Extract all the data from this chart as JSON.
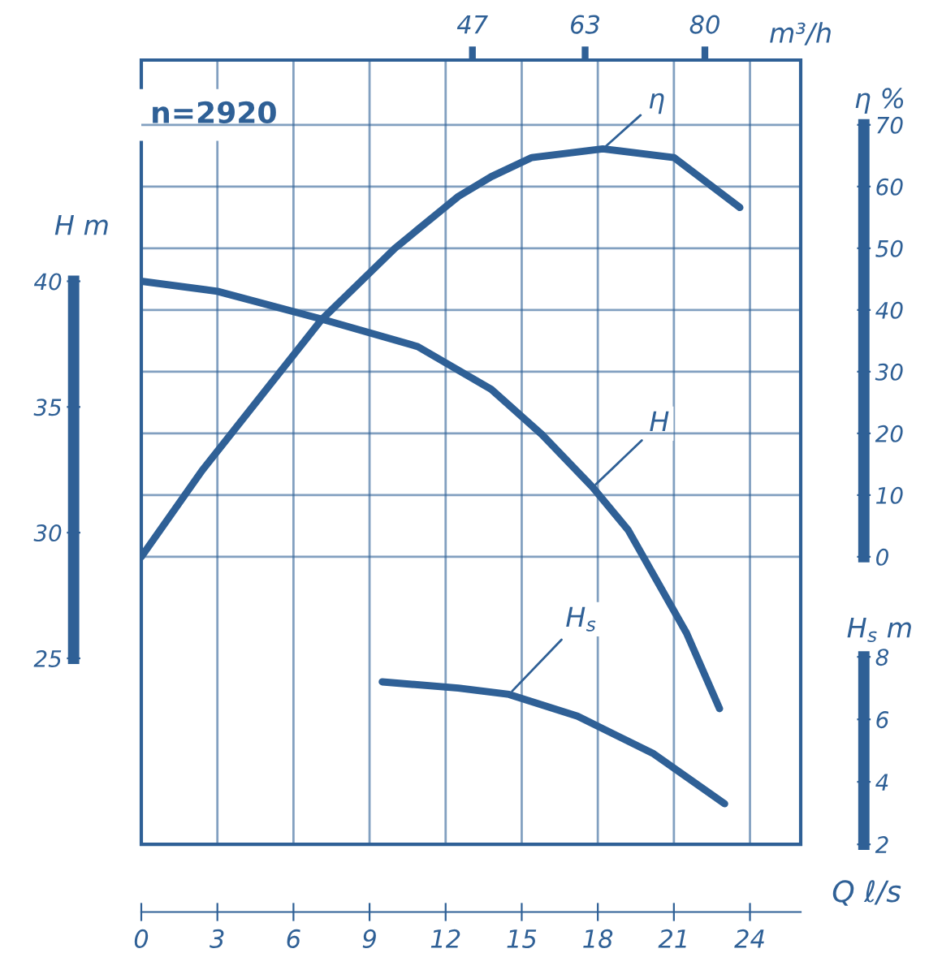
{
  "chart_data": {
    "type": "line",
    "xlabel": "Q ℓ/s",
    "x2label": "m³/h",
    "ylabel": "H m",
    "y2label": "η %",
    "y3label": "H$_{s}$ m",
    "xlim": [
      0,
      26
    ],
    "xticks": [
      0,
      3,
      6,
      9,
      12,
      15,
      18,
      21,
      24
    ],
    "x2lim": [
      0,
      93.6
    ],
    "x2ticks": [
      47,
      63,
      80
    ],
    "ylim": [
      17.6,
      48.8
    ],
    "yticks": [
      25,
      30,
      35,
      40
    ],
    "y2lim": [
      -46.6,
      80.5
    ],
    "y2ticks": [
      0,
      10,
      20,
      30,
      40,
      50,
      60,
      70
    ],
    "y3lim": [
      2,
      27.1
    ],
    "y3ticks": [
      2,
      4,
      6,
      8
    ],
    "grid": true,
    "legend": false,
    "marker": "none",
    "line_style": "solid",
    "annotations": [
      "n=2920"
    ],
    "series": [
      {
        "name": "H",
        "color": "#2f6096",
        "x": [
          0,
          3,
          7.1,
          10.9,
          13.8,
          15.8,
          17.8,
          19.2,
          21.5,
          22.8
        ],
        "values": [
          40,
          39.6,
          38.5,
          37.4,
          35.7,
          33.9,
          31.8,
          30.1,
          26.0,
          23.0
        ]
      },
      {
        "name": "η",
        "color": "#2f6096",
        "axis": "y2",
        "x": [
          0,
          2.4,
          7.1,
          10,
          12.5,
          13.8,
          15.4,
          18.2,
          21,
          23.6
        ],
        "values": [
          0,
          14,
          38.4,
          50,
          58.4,
          61.6,
          64.7,
          66.1,
          64.7,
          56.6
        ]
      },
      {
        "name": "H$_{s}$",
        "color": "#2f6096",
        "axis": "y3",
        "x": [
          9.5,
          12.5,
          14.5,
          17.2,
          20.2,
          23.0
        ],
        "values": [
          7.2,
          7.0,
          6.8,
          6.1,
          4.9,
          3.3
        ]
      }
    ]
  }
}
